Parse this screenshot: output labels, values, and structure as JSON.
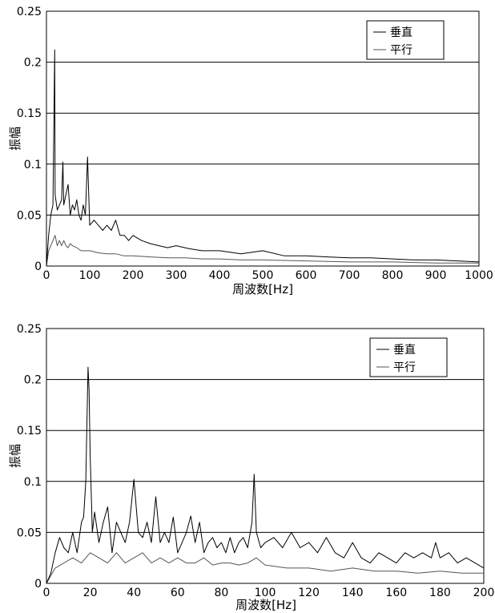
{
  "chart_data": [
    {
      "type": "line",
      "xlabel": "周波数[Hz]",
      "ylabel": "振幅",
      "xlim": [
        0,
        1000
      ],
      "ylim": [
        0,
        0.25
      ],
      "x_ticks": [
        "0",
        "100",
        "200",
        "300",
        "400",
        "500",
        "600",
        "700",
        "800",
        "900",
        "1000"
      ],
      "y_ticks": [
        "0",
        "0.05",
        "0.1",
        "0.15",
        "0.2",
        "0.25"
      ],
      "grid": "horizontal",
      "legend_position": "top-right",
      "series": [
        {
          "name": "垂直",
          "color": "#000000",
          "x": [
            0,
            5,
            10,
            15,
            19,
            20,
            25,
            30,
            35,
            38,
            40,
            45,
            50,
            55,
            60,
            65,
            70,
            75,
            80,
            85,
            90,
            95,
            100,
            110,
            120,
            130,
            140,
            150,
            160,
            170,
            180,
            190,
            200,
            220,
            240,
            260,
            280,
            300,
            330,
            360,
            400,
            450,
            500,
            550,
            600,
            650,
            700,
            750,
            800,
            850,
            900,
            950,
            1000
          ],
          "y": [
            0.0,
            0.03,
            0.05,
            0.06,
            0.212,
            0.07,
            0.055,
            0.06,
            0.065,
            0.102,
            0.06,
            0.07,
            0.08,
            0.05,
            0.06,
            0.055,
            0.065,
            0.05,
            0.045,
            0.06,
            0.05,
            0.107,
            0.04,
            0.045,
            0.04,
            0.035,
            0.04,
            0.035,
            0.045,
            0.03,
            0.03,
            0.025,
            0.03,
            0.025,
            0.022,
            0.02,
            0.018,
            0.02,
            0.017,
            0.015,
            0.015,
            0.012,
            0.015,
            0.01,
            0.01,
            0.009,
            0.008,
            0.008,
            0.007,
            0.006,
            0.006,
            0.005,
            0.004
          ]
        },
        {
          "name": "平行",
          "color": "#000000",
          "x": [
            0,
            5,
            10,
            15,
            20,
            25,
            30,
            35,
            40,
            45,
            50,
            55,
            60,
            70,
            80,
            90,
            100,
            120,
            140,
            160,
            180,
            200,
            240,
            280,
            320,
            360,
            400,
            450,
            500,
            600,
            700,
            800,
            900,
            1000
          ],
          "y": [
            0.0,
            0.015,
            0.02,
            0.025,
            0.03,
            0.02,
            0.025,
            0.02,
            0.025,
            0.02,
            0.018,
            0.022,
            0.02,
            0.018,
            0.015,
            0.015,
            0.015,
            0.013,
            0.012,
            0.012,
            0.01,
            0.01,
            0.009,
            0.008,
            0.008,
            0.007,
            0.007,
            0.006,
            0.006,
            0.005,
            0.004,
            0.004,
            0.003,
            0.003
          ]
        }
      ]
    },
    {
      "type": "line",
      "xlabel": "周波数[Hz]",
      "ylabel": "振幅",
      "xlim": [
        0,
        200
      ],
      "ylim": [
        0,
        0.25
      ],
      "x_ticks": [
        "0",
        "20",
        "40",
        "60",
        "80",
        "100",
        "120",
        "140",
        "160",
        "180",
        "200"
      ],
      "y_ticks": [
        "0",
        "0.05",
        "0.1",
        "0.15",
        "0.2",
        "0.25"
      ],
      "grid": "horizontal",
      "legend_position": "top-right",
      "series": [
        {
          "name": "垂直",
          "color": "#000000",
          "x": [
            0,
            2,
            4,
            6,
            8,
            10,
            12,
            14,
            16,
            17,
            18,
            19,
            19.5,
            20,
            21,
            22,
            24,
            26,
            28,
            30,
            32,
            34,
            36,
            38,
            40,
            42,
            44,
            46,
            48,
            50,
            52,
            54,
            56,
            58,
            60,
            62,
            64,
            66,
            68,
            70,
            72,
            74,
            76,
            78,
            80,
            82,
            84,
            86,
            88,
            90,
            92,
            94,
            95,
            96,
            98,
            100,
            104,
            108,
            112,
            116,
            120,
            124,
            128,
            132,
            136,
            140,
            144,
            148,
            152,
            156,
            160,
            164,
            168,
            172,
            176,
            178,
            180,
            184,
            188,
            192,
            196,
            200
          ],
          "y": [
            0.0,
            0.01,
            0.03,
            0.045,
            0.035,
            0.03,
            0.05,
            0.03,
            0.06,
            0.065,
            0.1,
            0.212,
            0.19,
            0.125,
            0.05,
            0.07,
            0.04,
            0.06,
            0.075,
            0.03,
            0.06,
            0.05,
            0.04,
            0.06,
            0.102,
            0.05,
            0.045,
            0.06,
            0.04,
            0.085,
            0.04,
            0.05,
            0.04,
            0.065,
            0.03,
            0.04,
            0.05,
            0.066,
            0.04,
            0.06,
            0.03,
            0.04,
            0.045,
            0.035,
            0.04,
            0.03,
            0.045,
            0.03,
            0.04,
            0.045,
            0.035,
            0.06,
            0.107,
            0.05,
            0.035,
            0.04,
            0.045,
            0.035,
            0.05,
            0.035,
            0.04,
            0.03,
            0.045,
            0.03,
            0.025,
            0.04,
            0.025,
            0.02,
            0.03,
            0.025,
            0.02,
            0.03,
            0.025,
            0.03,
            0.025,
            0.04,
            0.025,
            0.03,
            0.02,
            0.025,
            0.02,
            0.015
          ]
        },
        {
          "name": "平行",
          "color": "#000000",
          "x": [
            0,
            4,
            8,
            12,
            16,
            20,
            24,
            28,
            32,
            36,
            40,
            44,
            48,
            52,
            56,
            60,
            64,
            68,
            72,
            76,
            80,
            84,
            88,
            92,
            96,
            100,
            110,
            120,
            130,
            140,
            150,
            160,
            170,
            180,
            190,
            200
          ],
          "y": [
            0.0,
            0.015,
            0.02,
            0.025,
            0.02,
            0.03,
            0.025,
            0.02,
            0.03,
            0.02,
            0.025,
            0.03,
            0.02,
            0.025,
            0.02,
            0.025,
            0.02,
            0.02,
            0.025,
            0.018,
            0.02,
            0.02,
            0.018,
            0.02,
            0.025,
            0.018,
            0.015,
            0.015,
            0.012,
            0.015,
            0.012,
            0.012,
            0.01,
            0.012,
            0.01,
            0.01
          ]
        }
      ]
    }
  ]
}
